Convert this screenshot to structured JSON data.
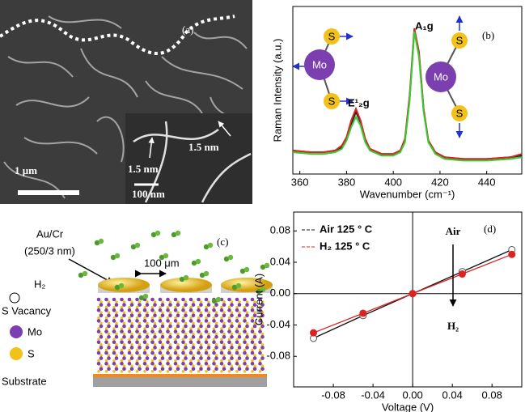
{
  "chart_data": [
    {
      "type": "line",
      "panel_label": "(b)",
      "xlabel": "Wavenumber (cm⁻¹)",
      "ylabel": "Raman Intensity (a.u.)",
      "peak_labels": [
        "E¹₂g",
        "A₁g"
      ],
      "molecule_labels": [
        "Mo",
        "S"
      ],
      "x": [
        357,
        365,
        370,
        375,
        378,
        380,
        382,
        384,
        386,
        388,
        390,
        395,
        400,
        403,
        405,
        407,
        409,
        411,
        413,
        415,
        418,
        422,
        430,
        440,
        450,
        455
      ],
      "series": [
        {
          "color": "#222222",
          "values": [
            0.14,
            0.13,
            0.13,
            0.14,
            0.16,
            0.21,
            0.3,
            0.37,
            0.31,
            0.2,
            0.15,
            0.12,
            0.12,
            0.14,
            0.2,
            0.45,
            0.86,
            0.72,
            0.38,
            0.2,
            0.13,
            0.1,
            0.09,
            0.09,
            0.1,
            0.11
          ]
        },
        {
          "color": "#dd2222",
          "values": [
            0.14,
            0.13,
            0.13,
            0.14,
            0.17,
            0.22,
            0.32,
            0.39,
            0.32,
            0.21,
            0.15,
            0.12,
            0.12,
            0.14,
            0.21,
            0.47,
            0.87,
            0.73,
            0.39,
            0.2,
            0.13,
            0.1,
            0.09,
            0.09,
            0.1,
            0.12
          ]
        },
        {
          "color": "#33cc33",
          "values": [
            0.13,
            0.12,
            0.12,
            0.13,
            0.15,
            0.2,
            0.28,
            0.34,
            0.29,
            0.19,
            0.14,
            0.11,
            0.11,
            0.13,
            0.19,
            0.44,
            0.85,
            0.7,
            0.37,
            0.19,
            0.12,
            0.09,
            0.08,
            0.08,
            0.09,
            0.1
          ]
        }
      ],
      "xlim": [
        357,
        455
      ],
      "ylim": [
        0,
        1
      ],
      "xticks": [
        360,
        380,
        400,
        420,
        440
      ]
    },
    {
      "type": "line",
      "panel_label": "(d)",
      "xlabel": "Voltage (V)",
      "ylabel": "Current (A)",
      "annotations": [
        "Air",
        "H₂"
      ],
      "zero_lines": true,
      "legend": "top-left",
      "x": [
        -0.1,
        -0.05,
        0,
        0.05,
        0.1
      ],
      "series": [
        {
          "name": "Air 125 ° C",
          "color": "#111111",
          "marker": "open-circle",
          "values": [
            -0.057,
            -0.028,
            0,
            0.028,
            0.056
          ]
        },
        {
          "name": "H₂ 125 ° C",
          "color": "#dd2222",
          "marker": "filled-circle",
          "values": [
            -0.05,
            -0.025,
            0,
            0.025,
            0.05
          ]
        }
      ],
      "xlim": [
        -0.12,
        0.11
      ],
      "ylim": [
        -0.119,
        0.104
      ],
      "xticks": [
        -0.08,
        -0.04,
        {
          "value": 0,
          "label": "0.00"
        },
        0.04,
        0.08
      ],
      "yticks": [
        0.08,
        0.04,
        {
          "value": 0,
          "label": "0.00"
        },
        -0.04,
        -0.08
      ]
    }
  ],
  "panel_a": {
    "label": "(a)",
    "width_labels": [
      "1.5 nm",
      "1.5 nm"
    ],
    "scale": "1 μm",
    "inset_scale": "100 nm"
  },
  "panel_c": {
    "label": "(c)",
    "electrode": "Au/Cr",
    "thickness": "(250/3 nm)",
    "gas": "H₂",
    "gap": "100 μm",
    "vacancy": "S Vacancy",
    "mo": "Mo",
    "s": "S",
    "substrate": "Substrate"
  }
}
